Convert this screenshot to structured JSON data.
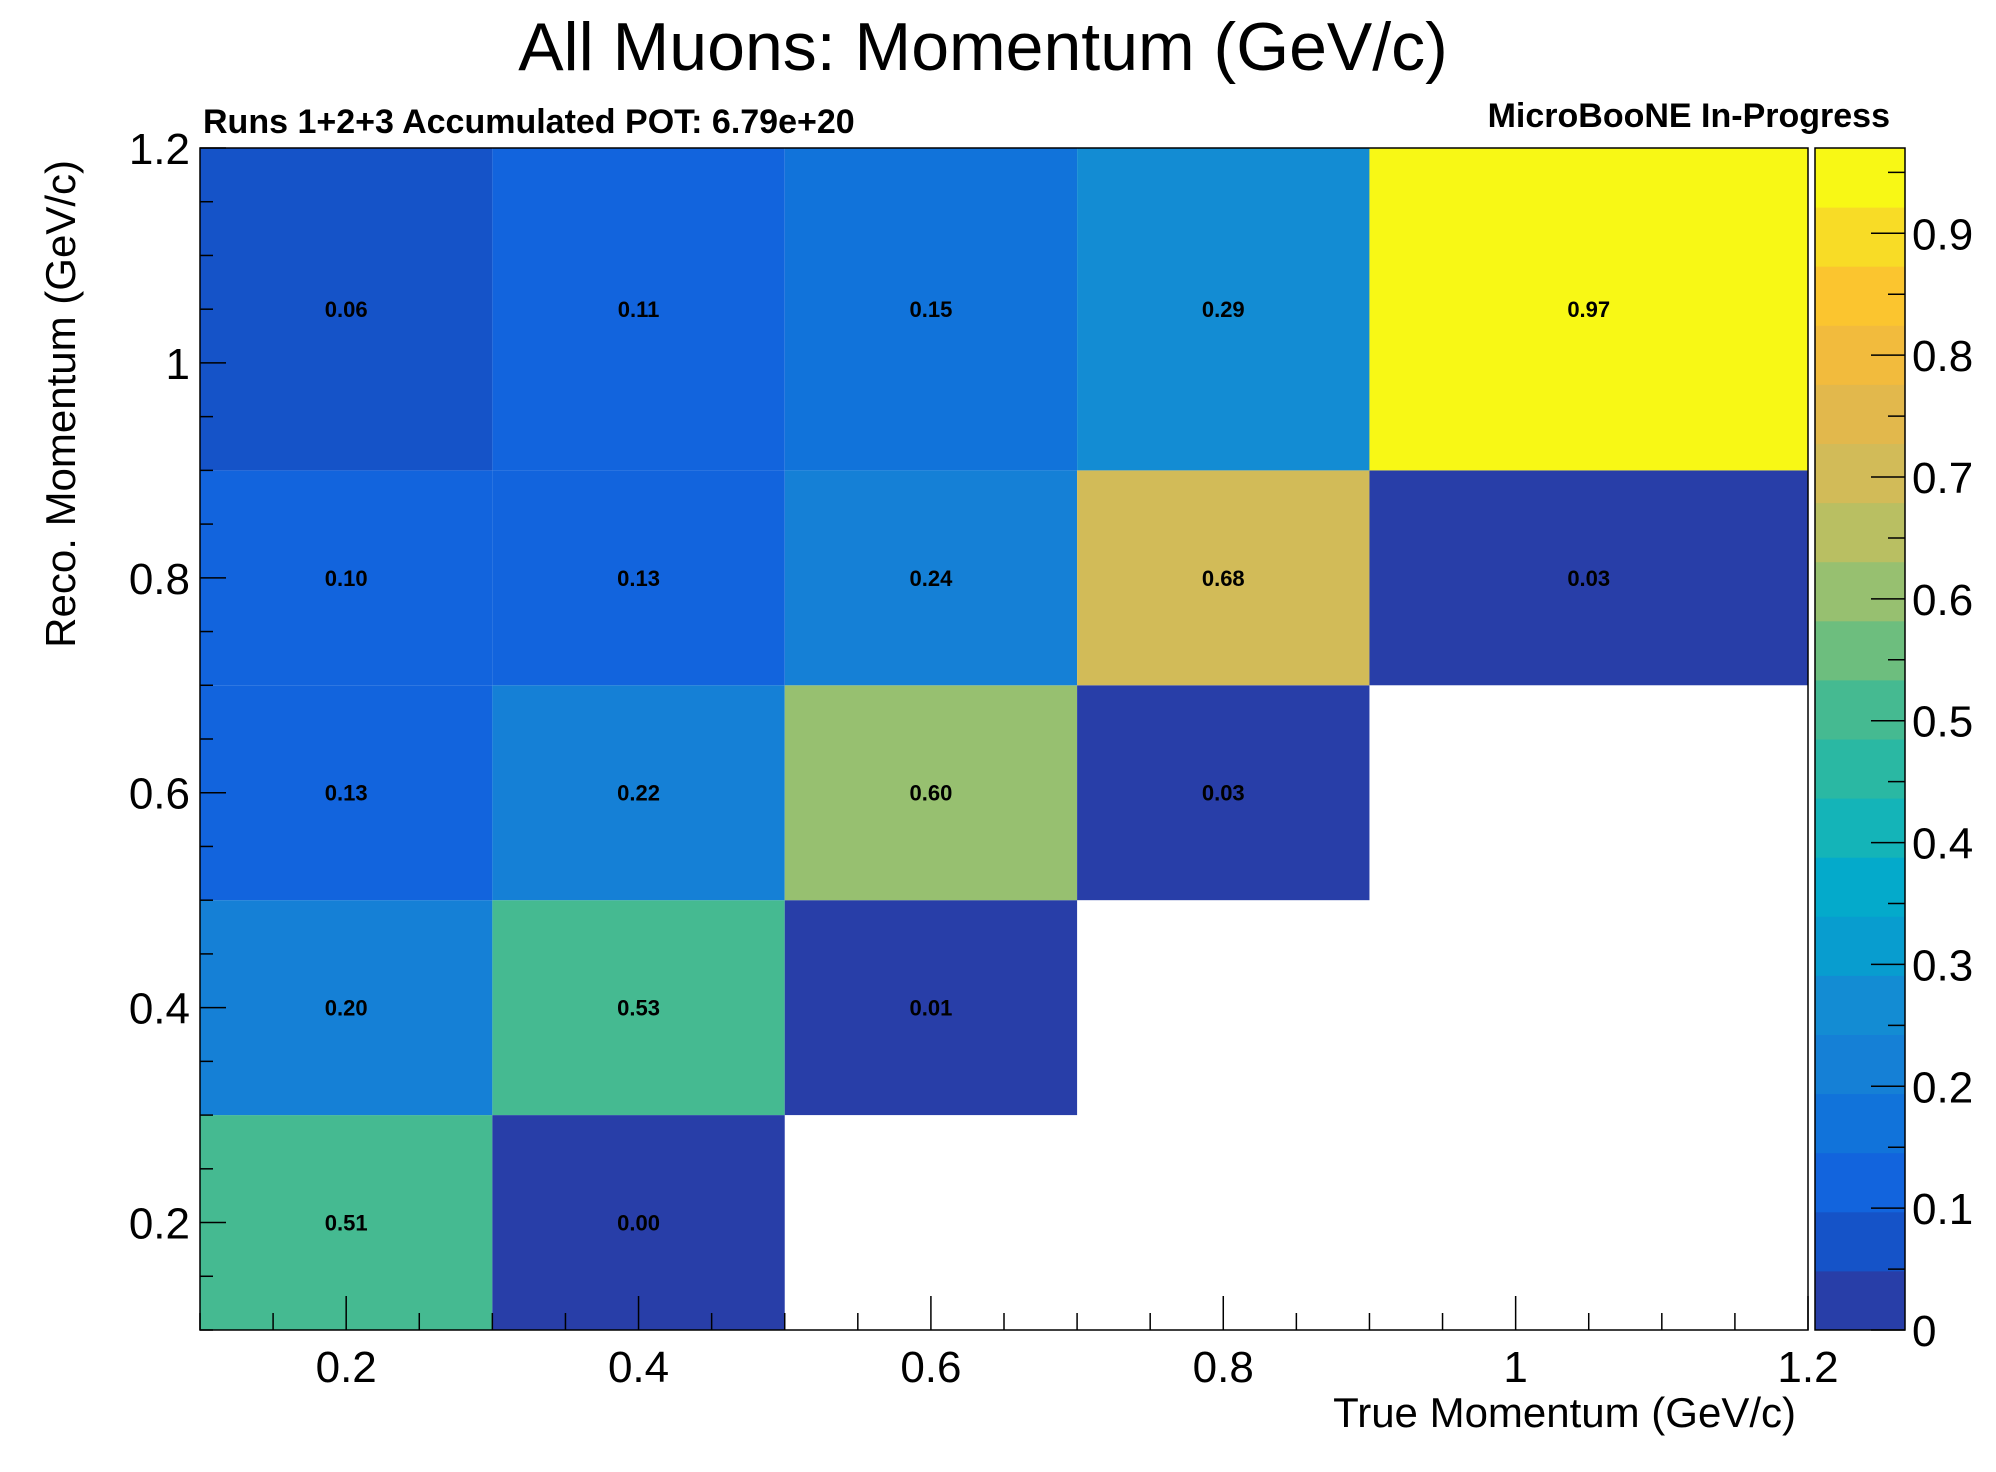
{
  "chart_data": {
    "type": "heatmap",
    "title": "All Muons: Momentum (GeV/c)",
    "subtitle_left": "Runs 1+2+3 Accumulated POT: 6.79e+20",
    "subtitle_right": "MicroBooNE In-Progress",
    "xlabel": "True Momentum (GeV/c)",
    "ylabel": "Reco. Momentum (GeV/c)",
    "xlim": [
      0.1,
      1.2
    ],
    "ylim": [
      0.1,
      1.2
    ],
    "zlim": [
      0,
      0.97
    ],
    "x_ticks": [
      "0.2",
      "0.4",
      "0.6",
      "0.8",
      "1",
      "1.2"
    ],
    "y_ticks": [
      "0.2",
      "0.4",
      "0.6",
      "0.8",
      "1",
      "1.2"
    ],
    "z_ticks": [
      "0",
      "0.1",
      "0.2",
      "0.3",
      "0.4",
      "0.5",
      "0.6",
      "0.7",
      "0.8",
      "0.9"
    ],
    "x_bins": [
      0.1,
      0.3,
      0.5,
      0.7,
      0.9,
      1.2
    ],
    "y_bins": [
      0.1,
      0.3,
      0.5,
      0.7,
      0.9,
      1.2
    ],
    "cells": [
      {
        "x": 0,
        "y": 0,
        "value": 0.51,
        "label": "0.51"
      },
      {
        "x": 1,
        "y": 0,
        "value": 0.0,
        "label": "0.00"
      },
      {
        "x": 0,
        "y": 1,
        "value": 0.2,
        "label": "0.20"
      },
      {
        "x": 1,
        "y": 1,
        "value": 0.53,
        "label": "0.53"
      },
      {
        "x": 2,
        "y": 1,
        "value": 0.01,
        "label": "0.01"
      },
      {
        "x": 0,
        "y": 2,
        "value": 0.13,
        "label": "0.13"
      },
      {
        "x": 1,
        "y": 2,
        "value": 0.22,
        "label": "0.22"
      },
      {
        "x": 2,
        "y": 2,
        "value": 0.6,
        "label": "0.60"
      },
      {
        "x": 3,
        "y": 2,
        "value": 0.03,
        "label": "0.03"
      },
      {
        "x": 0,
        "y": 3,
        "value": 0.1,
        "label": "0.10"
      },
      {
        "x": 1,
        "y": 3,
        "value": 0.13,
        "label": "0.13"
      },
      {
        "x": 2,
        "y": 3,
        "value": 0.24,
        "label": "0.24"
      },
      {
        "x": 3,
        "y": 3,
        "value": 0.68,
        "label": "0.68"
      },
      {
        "x": 4,
        "y": 3,
        "value": 0.03,
        "label": "0.03"
      },
      {
        "x": 0,
        "y": 4,
        "value": 0.06,
        "label": "0.06"
      },
      {
        "x": 1,
        "y": 4,
        "value": 0.11,
        "label": "0.11"
      },
      {
        "x": 2,
        "y": 4,
        "value": 0.15,
        "label": "0.15"
      },
      {
        "x": 3,
        "y": 4,
        "value": 0.29,
        "label": "0.29"
      },
      {
        "x": 4,
        "y": 4,
        "value": 0.97,
        "label": "0.97"
      }
    ],
    "palette": [
      "#283ea8",
      "#1553c8",
      "#1264dd",
      "#1173da",
      "#1580d6",
      "#138cd3",
      "#089dcf",
      "#04aacb",
      "#14b4b8",
      "#2ab8a3",
      "#45ba91",
      "#6dbe7e",
      "#97c070",
      "#b9bf62",
      "#d2bb58",
      "#e2b84c",
      "#f2bb3d",
      "#fbc52f",
      "#f8dc26",
      "#f8f815"
    ]
  }
}
